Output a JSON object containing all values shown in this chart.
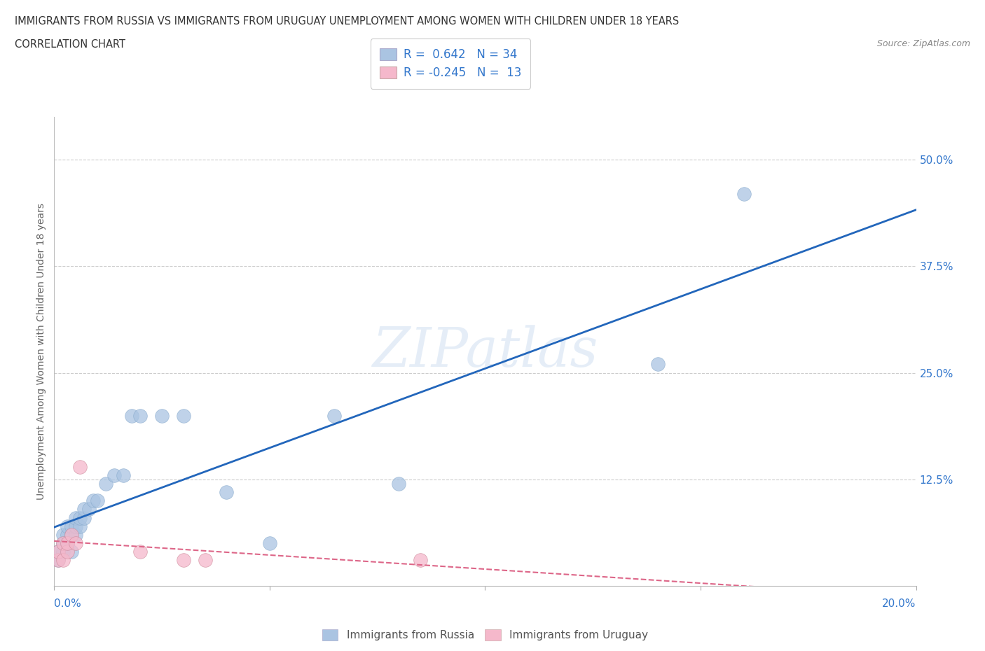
{
  "title_line1": "IMMIGRANTS FROM RUSSIA VS IMMIGRANTS FROM URUGUAY UNEMPLOYMENT AMONG WOMEN WITH CHILDREN UNDER 18 YEARS",
  "title_line2": "CORRELATION CHART",
  "source": "Source: ZipAtlas.com",
  "ylabel": "Unemployment Among Women with Children Under 18 years",
  "watermark": "ZIPatlas",
  "legend_label_russia": "Immigrants from Russia",
  "legend_label_uruguay": "Immigrants from Uruguay",
  "r_russia": "0.642",
  "n_russia": "34",
  "r_uruguay": "-0.245",
  "n_uruguay": "13",
  "russia_color": "#aac4e2",
  "uruguay_color": "#f5b8cb",
  "russia_line_color": "#2266bb",
  "uruguay_line_color": "#dd6688",
  "grid_color": "#cccccc",
  "background_color": "#ffffff",
  "title_color": "#444444",
  "axis_label_color": "#666666",
  "legend_text_color": "#3377cc",
  "right_tick_color": "#3377cc",
  "xlim": [
    0.0,
    0.2
  ],
  "ylim": [
    0.0,
    0.55
  ],
  "yticks_right": [
    0.0,
    0.125,
    0.25,
    0.375,
    0.5
  ],
  "ytick_labels_right": [
    "",
    "12.5%",
    "25.0%",
    "37.5%",
    "50.0%"
  ],
  "russia_x": [
    0.001,
    0.001,
    0.002,
    0.002,
    0.002,
    0.003,
    0.003,
    0.003,
    0.004,
    0.004,
    0.004,
    0.005,
    0.005,
    0.005,
    0.006,
    0.006,
    0.007,
    0.007,
    0.008,
    0.009,
    0.01,
    0.012,
    0.014,
    0.016,
    0.018,
    0.02,
    0.025,
    0.03,
    0.04,
    0.05,
    0.065,
    0.08,
    0.14,
    0.16
  ],
  "russia_y": [
    0.03,
    0.04,
    0.05,
    0.06,
    0.04,
    0.05,
    0.06,
    0.07,
    0.04,
    0.06,
    0.07,
    0.06,
    0.07,
    0.08,
    0.07,
    0.08,
    0.08,
    0.09,
    0.09,
    0.1,
    0.1,
    0.12,
    0.13,
    0.13,
    0.2,
    0.2,
    0.2,
    0.2,
    0.11,
    0.05,
    0.2,
    0.12,
    0.26,
    0.46
  ],
  "uruguay_x": [
    0.001,
    0.001,
    0.002,
    0.002,
    0.003,
    0.003,
    0.004,
    0.005,
    0.006,
    0.02,
    0.03,
    0.035,
    0.085
  ],
  "uruguay_y": [
    0.03,
    0.04,
    0.03,
    0.05,
    0.04,
    0.05,
    0.06,
    0.05,
    0.14,
    0.04,
    0.03,
    0.03,
    0.03
  ]
}
